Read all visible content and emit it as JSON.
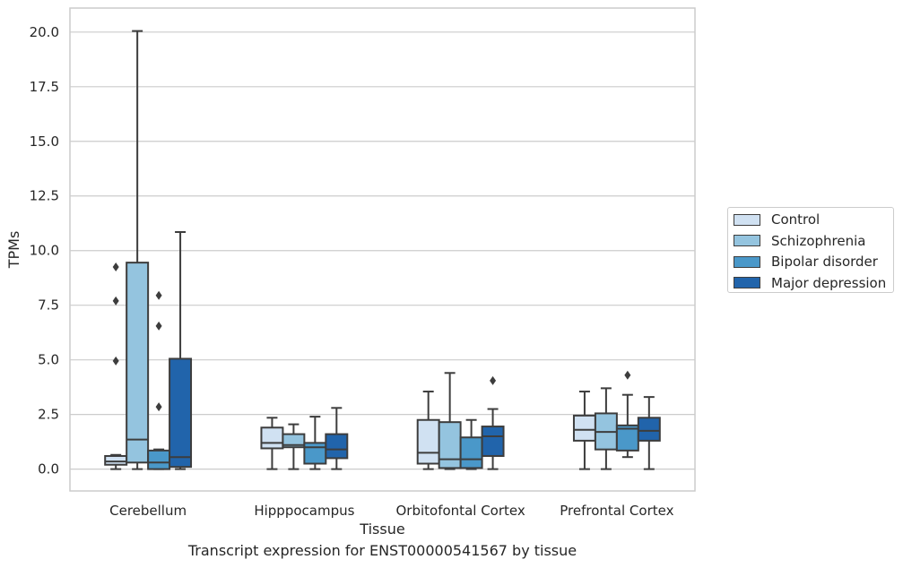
{
  "caption": "Transcript expression for ENST00000541567 by tissue",
  "chart_data": {
    "type": "box",
    "xlabel": "Tissue",
    "ylabel": "TPMs",
    "ylim": [
      -1.0,
      21.1
    ],
    "yticks": [
      "0.0",
      "2.5",
      "5.0",
      "7.5",
      "10.0",
      "12.5",
      "15.0",
      "17.5",
      "20.0"
    ],
    "categories": [
      "Cerebellum",
      "Hipppocampus",
      "Orbitofontal Cortex",
      "Prefrontal Cortex"
    ],
    "grid": "horizontal",
    "legend_position": "right",
    "series": [
      {
        "name": "Control",
        "color": "#d0e1f2",
        "boxes": [
          {
            "whislo": 0.0,
            "q1": 0.2,
            "med": 0.35,
            "q3": 0.6,
            "whishi": 0.65,
            "fliers": [
              4.95,
              7.7,
              9.25
            ]
          },
          {
            "whislo": 0.0,
            "q1": 0.95,
            "med": 1.2,
            "q3": 1.9,
            "whishi": 2.35,
            "fliers": []
          },
          {
            "whislo": 0.0,
            "q1": 0.25,
            "med": 0.75,
            "q3": 2.25,
            "whishi": 3.55,
            "fliers": []
          },
          {
            "whislo": 0.0,
            "q1": 1.3,
            "med": 1.8,
            "q3": 2.45,
            "whishi": 3.55,
            "fliers": []
          }
        ]
      },
      {
        "name": "Schizophrenia",
        "color": "#94c4df",
        "boxes": [
          {
            "whislo": 0.0,
            "q1": 0.3,
            "med": 1.35,
            "q3": 9.45,
            "whishi": 20.05,
            "fliers": []
          },
          {
            "whislo": 0.0,
            "q1": 1.0,
            "med": 1.1,
            "q3": 1.6,
            "whishi": 2.05,
            "fliers": []
          },
          {
            "whislo": 0.0,
            "q1": 0.05,
            "med": 0.45,
            "q3": 2.15,
            "whishi": 4.4,
            "fliers": []
          },
          {
            "whislo": 0.0,
            "q1": 0.9,
            "med": 1.7,
            "q3": 2.55,
            "whishi": 3.7,
            "fliers": []
          }
        ]
      },
      {
        "name": "Bipolar disorder",
        "color": "#4a98c9",
        "boxes": [
          {
            "whislo": 0.0,
            "q1": 0.0,
            "med": 0.3,
            "q3": 0.85,
            "whishi": 0.9,
            "fliers": [
              2.85,
              6.55,
              7.95
            ]
          },
          {
            "whislo": 0.0,
            "q1": 0.25,
            "med": 1.0,
            "q3": 1.2,
            "whishi": 2.4,
            "fliers": []
          },
          {
            "whislo": 0.0,
            "q1": 0.05,
            "med": 0.45,
            "q3": 1.45,
            "whishi": 2.25,
            "fliers": []
          },
          {
            "whislo": 0.55,
            "q1": 0.85,
            "med": 1.85,
            "q3": 2.0,
            "whishi": 3.4,
            "fliers": [
              4.3
            ]
          }
        ]
      },
      {
        "name": "Major depression",
        "color": "#2164ab",
        "boxes": [
          {
            "whislo": 0.0,
            "q1": 0.1,
            "med": 0.55,
            "q3": 5.05,
            "whishi": 10.85,
            "fliers": []
          },
          {
            "whislo": 0.0,
            "q1": 0.5,
            "med": 0.9,
            "q3": 1.6,
            "whishi": 2.8,
            "fliers": []
          },
          {
            "whislo": 0.0,
            "q1": 0.6,
            "med": 1.5,
            "q3": 1.95,
            "whishi": 2.75,
            "fliers": [
              4.05
            ]
          },
          {
            "whislo": 0.0,
            "q1": 1.3,
            "med": 1.75,
            "q3": 2.35,
            "whishi": 3.3,
            "fliers": []
          }
        ]
      }
    ]
  }
}
